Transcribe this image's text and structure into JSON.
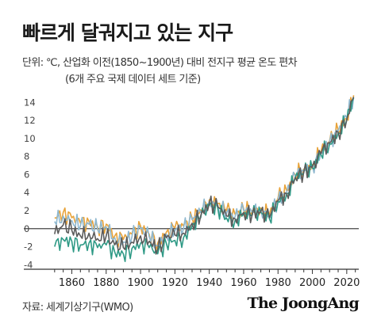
{
  "header": {
    "title": "빠르게 달궈지고 있는 지구",
    "subtitle_line1": "단위: ℃, 산업화 이전(1850~1900년) 대비 전지구 평균 온도 편차",
    "subtitle_line2": "(6개 주요 국제 데이터 세트 기준)"
  },
  "footer": {
    "source": "자료: 세계기상기구(WMO)",
    "brand": "The JoongAng"
  },
  "colors": {
    "series_orange": "#e8a33a",
    "series_blue": "#8fb8cf",
    "series_teal": "#2f9a86",
    "series_darkgray": "#5b5b5b",
    "axis": "#333333",
    "zero_line": "#444444"
  },
  "chart_data": {
    "type": "line",
    "title": "",
    "xlabel": "",
    "ylabel": "",
    "xlim": [
      1845,
      2027
    ],
    "ylim": [
      -4.5,
      15
    ],
    "y_ticks": [
      -4,
      -2,
      0,
      2,
      4,
      6,
      8,
      10,
      12,
      14
    ],
    "x_ticks": [
      1860,
      1880,
      1900,
      1920,
      1940,
      1960,
      1980,
      2000,
      2020
    ],
    "grid": false,
    "legend": "none",
    "x": [
      1850,
      1855,
      1860,
      1865,
      1870,
      1875,
      1880,
      1885,
      1890,
      1895,
      1900,
      1905,
      1910,
      1915,
      1920,
      1925,
      1930,
      1935,
      1940,
      1945,
      1950,
      1955,
      1960,
      1965,
      1970,
      1975,
      1980,
      1985,
      1990,
      1995,
      2000,
      2005,
      2010,
      2015,
      2020,
      2024
    ],
    "series": [
      {
        "color_key": "series_orange",
        "values": [
          1.2,
          1.8,
          1.2,
          0.6,
          0.8,
          0.2,
          0.5,
          -0.8,
          -1.2,
          -0.6,
          0.3,
          -0.6,
          -1.6,
          -0.4,
          0.1,
          0.3,
          1.2,
          2.1,
          3.2,
          2.8,
          2.0,
          1.6,
          2.2,
          2.0,
          2.3,
          1.6,
          3.4,
          4.2,
          6.0,
          6.6,
          7.1,
          8.5,
          9.7,
          10.9,
          12.2,
          14.8
        ]
      },
      {
        "color_key": "series_blue",
        "values": [
          0.8,
          1.4,
          0.9,
          0.3,
          0.5,
          -0.1,
          0.2,
          -1.0,
          -1.5,
          -0.9,
          0.0,
          -0.9,
          -1.9,
          -0.6,
          -0.2,
          0.0,
          1.0,
          1.8,
          3.0,
          2.6,
          1.7,
          1.3,
          2.0,
          1.8,
          2.1,
          1.4,
          3.2,
          4.0,
          5.8,
          6.4,
          6.9,
          8.4,
          9.6,
          10.8,
          12.3,
          14.6
        ]
      },
      {
        "color_key": "series_teal",
        "values": [
          -2.0,
          -1.2,
          -1.4,
          -1.8,
          -1.6,
          -2.1,
          -1.8,
          -2.6,
          -2.8,
          -2.2,
          -1.6,
          -2.1,
          -2.8,
          -1.6,
          -1.3,
          -1.0,
          0.3,
          1.2,
          2.6,
          2.2,
          1.2,
          0.9,
          1.6,
          1.5,
          1.8,
          1.1,
          3.0,
          3.8,
          5.6,
          6.2,
          6.7,
          8.2,
          9.4,
          10.6,
          12.0,
          14.5
        ]
      },
      {
        "color_key": "series_darkgray",
        "values": [
          -0.6,
          0.4,
          -0.2,
          -0.8,
          -0.5,
          -1.1,
          -0.8,
          -1.8,
          -2.1,
          -1.5,
          -0.8,
          -1.4,
          -2.3,
          -1.0,
          -0.7,
          -0.5,
          0.6,
          1.4,
          2.8,
          2.4,
          1.4,
          1.1,
          1.8,
          1.6,
          1.9,
          1.2,
          3.1,
          3.9,
          5.7,
          6.3,
          6.8,
          8.3,
          9.5,
          10.7,
          12.1,
          14.6
        ]
      }
    ]
  }
}
